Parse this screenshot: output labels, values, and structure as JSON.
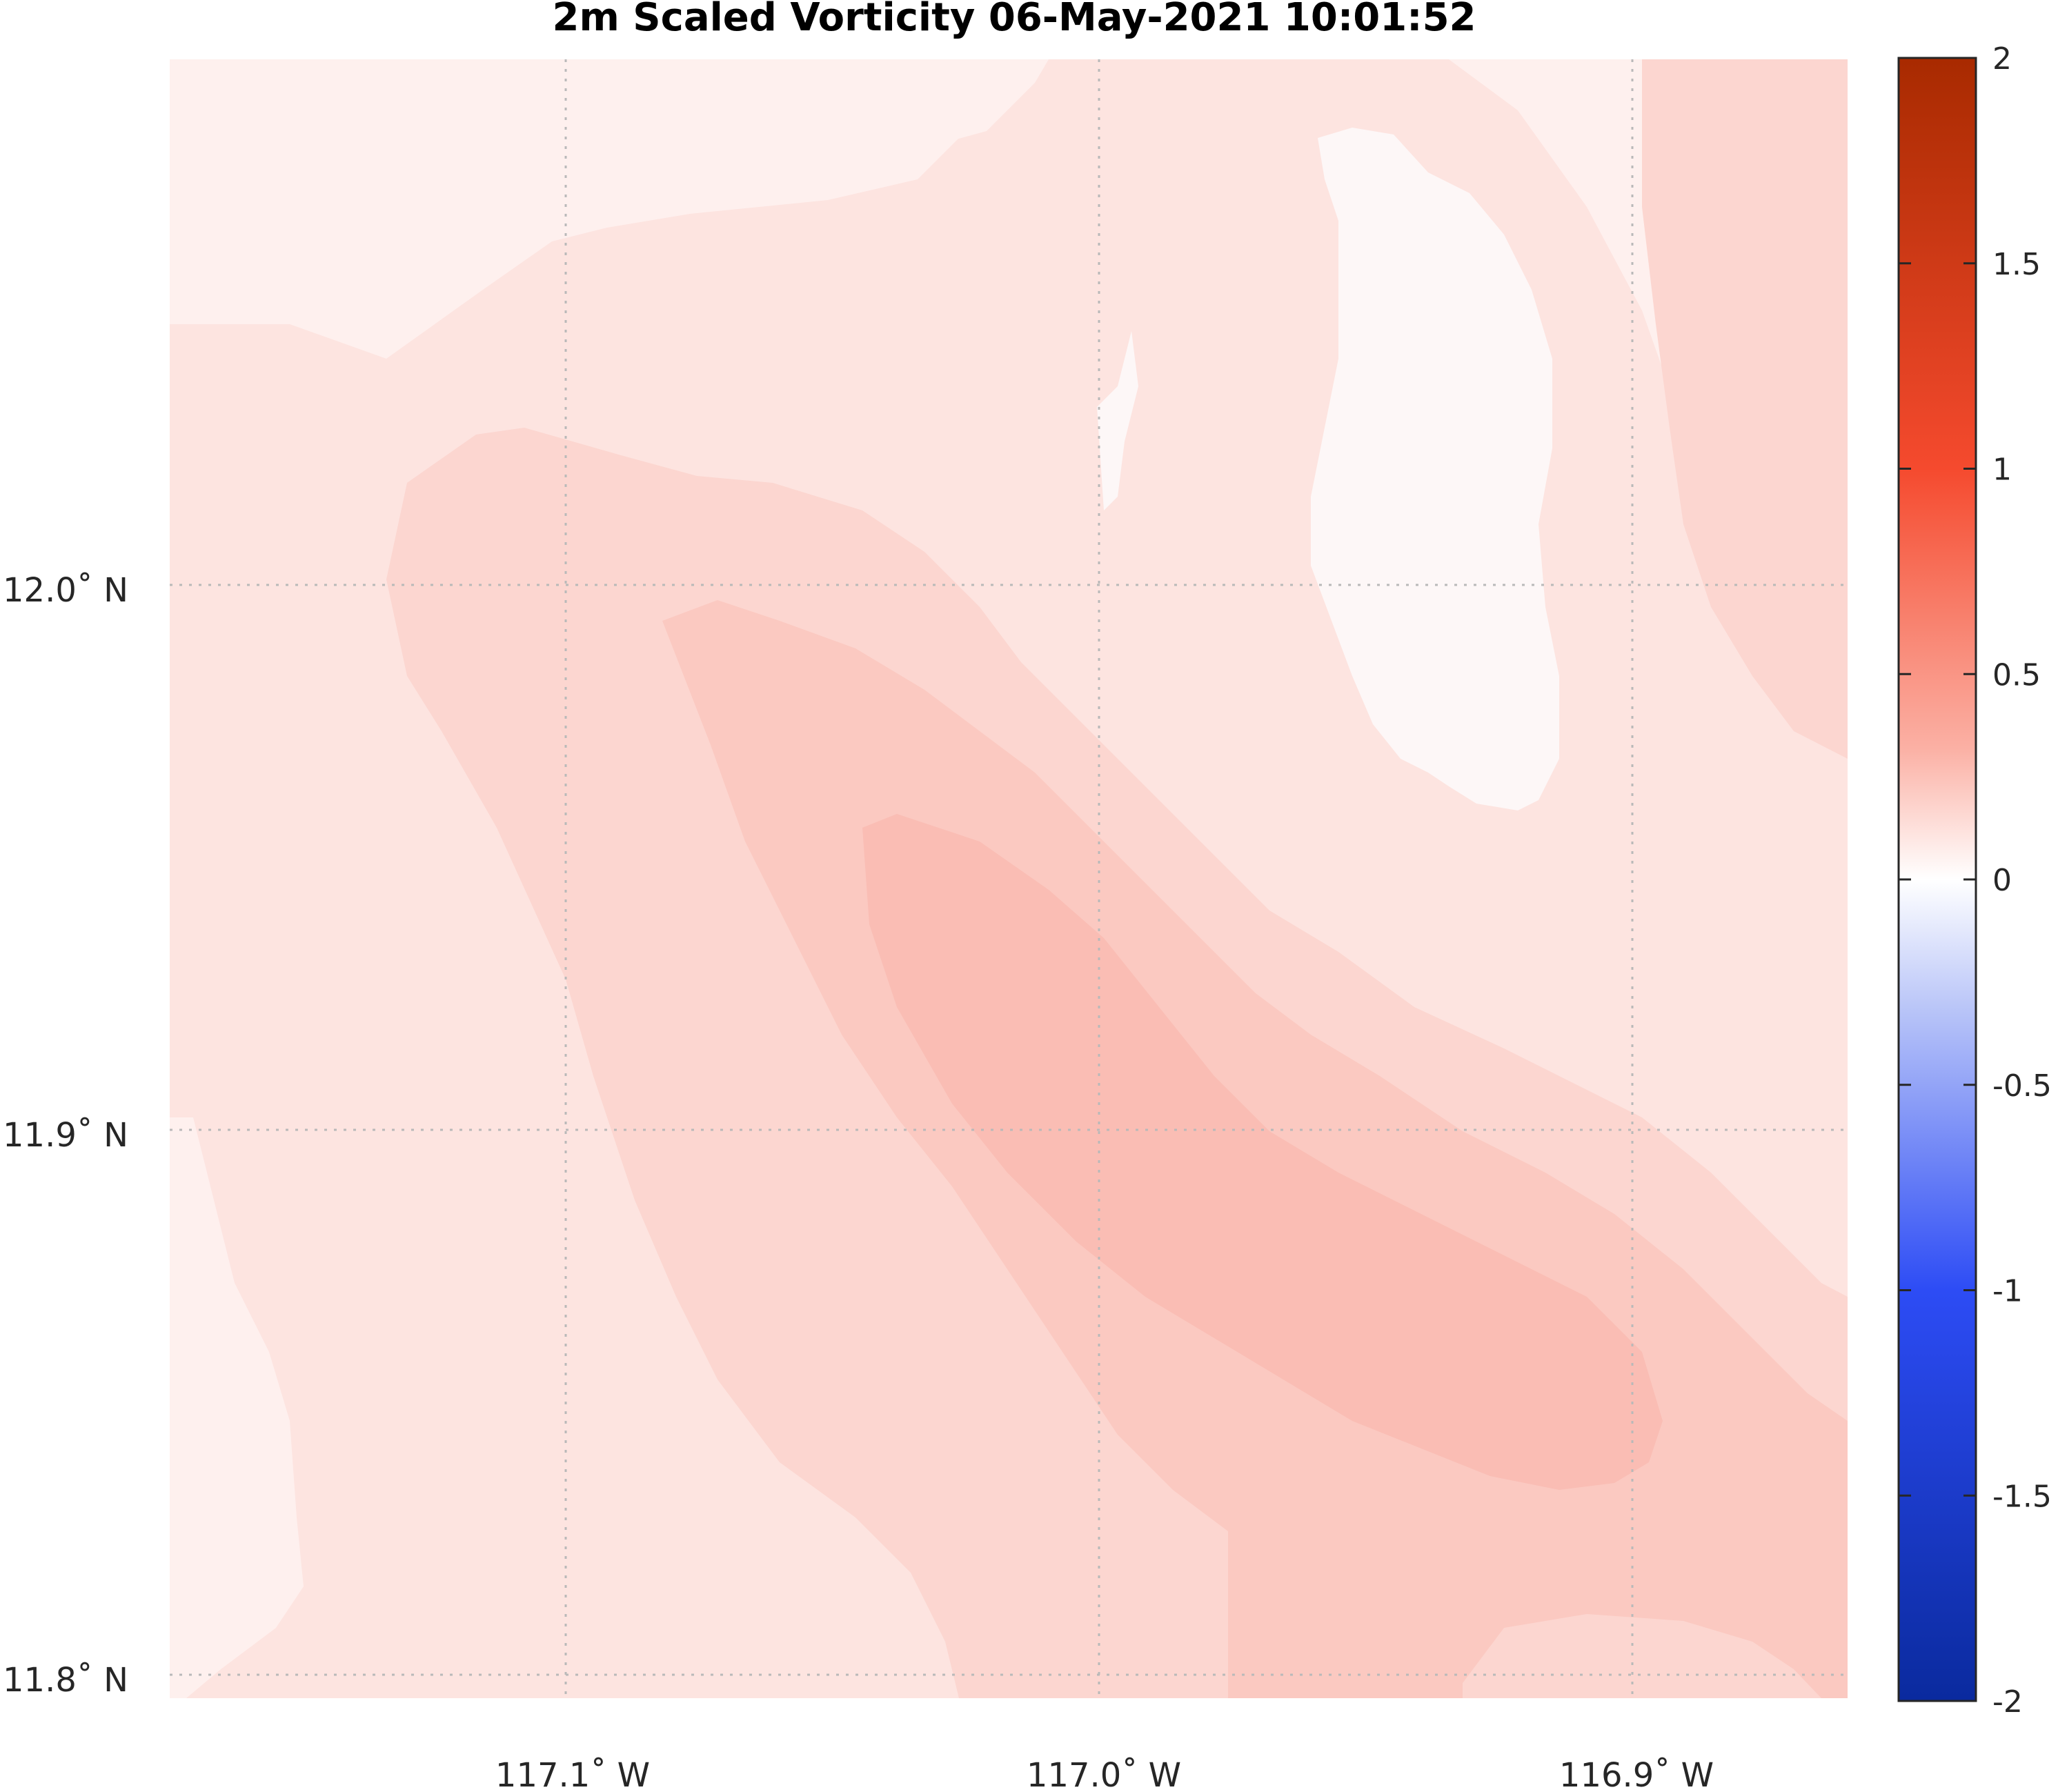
{
  "figure": {
    "title": "2m Scaled Vorticity  06-May-2021 10:01:52"
  },
  "map": {
    "lat_ticks": [
      {
        "value": 12.0,
        "label": "12.0˚ N"
      },
      {
        "value": 11.9,
        "label": "11.9˚ N"
      },
      {
        "value": 11.8,
        "label": "11.8˚ N"
      }
    ],
    "lon_ticks": [
      {
        "value": -117.1,
        "label": "117.1˚ W"
      },
      {
        "value": -117.0,
        "label": "117.0˚ W"
      },
      {
        "value": -116.9,
        "label": "116.9˚ W"
      }
    ],
    "grid": "dotted",
    "field": "2m scaled vorticity (all positive over domain, max ≈ 0.4 in NW–SE band)"
  },
  "colorbar": {
    "range": [
      -2,
      2
    ],
    "ticks": [
      {
        "value": 2,
        "label": "2"
      },
      {
        "value": 1.5,
        "label": "1.5"
      },
      {
        "value": 1,
        "label": "1"
      },
      {
        "value": 0.5,
        "label": "0.5"
      },
      {
        "value": 0,
        "label": "0"
      },
      {
        "value": -0.5,
        "label": "-0.5"
      },
      {
        "value": -1,
        "label": "-1"
      },
      {
        "value": -1.5,
        "label": "-1.5"
      },
      {
        "value": -2,
        "label": "-2"
      }
    ],
    "colors": {
      "neg_end": "#0a2a9e",
      "neg_mid": "#2d4cf5",
      "zero": "#ffffff",
      "pos_mid": "#f54a2e",
      "pos_end": "#a82a00"
    }
  },
  "contour_colors": {
    "level_0": "#fef0ee",
    "level_1": "#fde4e0",
    "level_2": "#fcd6d0",
    "level_3": "#fbc9c1",
    "level_4": "#fabdb4",
    "near_zero": "#fdf7f7"
  }
}
